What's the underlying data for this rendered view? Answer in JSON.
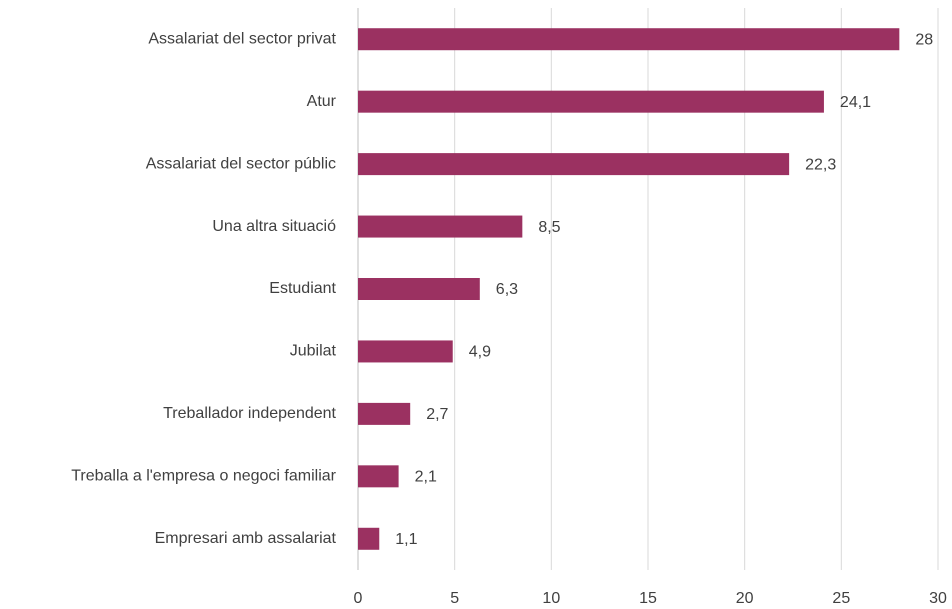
{
  "chart_data": {
    "type": "bar",
    "orientation": "horizontal",
    "categories": [
      "Assalariat del sector privat",
      "Atur",
      "Assalariat del sector públic",
      "Una altra situació",
      "Estudiant",
      "Jubilat",
      "Treballador independent",
      "Treballa a l'empresa o negoci familiar",
      "Empresari amb assalariat"
    ],
    "values": [
      28,
      24.1,
      22.3,
      8.5,
      6.3,
      4.9,
      2.7,
      2.1,
      1.1
    ],
    "value_labels": [
      "28",
      "24,1",
      "22,3",
      "8,5",
      "6,3",
      "4,9",
      "2,7",
      "2,1",
      "1,1"
    ],
    "color": "#9b3161",
    "xlim": [
      0,
      30
    ],
    "xticks": [
      0,
      5,
      10,
      15,
      20,
      25,
      30
    ],
    "grid": true
  }
}
